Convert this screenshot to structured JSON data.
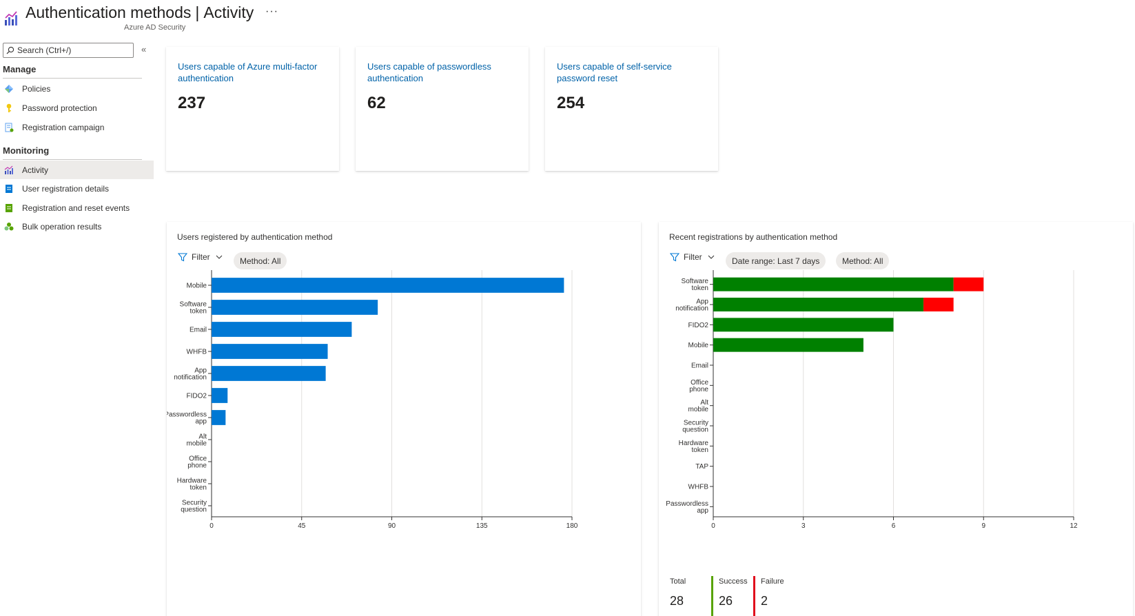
{
  "header": {
    "title": "Authentication methods",
    "separator": "|",
    "page": "Activity",
    "subtitle": "Azure AD Security",
    "more": "···"
  },
  "sidebar": {
    "search_placeholder": "Search (Ctrl+/)",
    "collapse": "«",
    "sections": [
      {
        "label": "Manage",
        "items": [
          {
            "label": "Policies",
            "icon": "policy-icon"
          },
          {
            "label": "Password protection",
            "icon": "key-icon"
          },
          {
            "label": "Registration campaign",
            "icon": "campaign-icon"
          }
        ]
      },
      {
        "label": "Monitoring",
        "items": [
          {
            "label": "Activity",
            "icon": "activity-chart-icon"
          },
          {
            "label": "User registration details",
            "icon": "details-icon"
          },
          {
            "label": "Registration and reset events",
            "icon": "events-icon"
          },
          {
            "label": "Bulk operation results",
            "icon": "bulk-icon"
          }
        ]
      }
    ]
  },
  "cards": [
    {
      "label": "Users capable of Azure multi-factor authentication",
      "value": "237"
    },
    {
      "label": "Users capable of passwordless authentication",
      "value": "62"
    },
    {
      "label": "Users capable of self-service password reset",
      "value": "254"
    }
  ],
  "panels": {
    "left": {
      "title": "Users registered by authentication method",
      "filter": "Filter",
      "pills": [
        "Method: All"
      ]
    },
    "right": {
      "title": "Recent registrations by authentication method",
      "filter": "Filter",
      "pills": [
        "Date range: Last 7 days",
        "Method: All"
      ],
      "stats": {
        "total_label": "Total",
        "total_value": "28",
        "success_label": "Success",
        "success_value": "26",
        "failure_label": "Failure",
        "failure_value": "2"
      }
    }
  },
  "colors": {
    "accent_blue": "#0078d4",
    "success_green": "#008000",
    "failure_red": "#ff0000",
    "success_bar": "#57a300",
    "failure_bar": "#e00b1c"
  },
  "chart_data": [
    {
      "type": "bar",
      "orientation": "horizontal",
      "title": "Users registered by authentication method",
      "categories": [
        [
          "Mobile"
        ],
        [
          "Software",
          "token"
        ],
        [
          "Email"
        ],
        [
          "WHFB"
        ],
        [
          "App",
          "notification"
        ],
        [
          "FIDO2"
        ],
        [
          "Passwordless",
          "app"
        ],
        [
          "Alt",
          "mobile"
        ],
        [
          "Office",
          "phone"
        ],
        [
          "Hardware",
          "token"
        ],
        [
          "Security",
          "question"
        ]
      ],
      "values": [
        176,
        83,
        70,
        58,
        57,
        8,
        7,
        0,
        0,
        0,
        0
      ],
      "xlim": [
        0,
        180
      ],
      "xticks": [
        "0",
        "45",
        "90",
        "135",
        "180"
      ],
      "xtick_values": [
        0,
        45,
        90,
        135,
        180
      ],
      "grid": true
    },
    {
      "type": "bar",
      "orientation": "horizontal",
      "stacked": true,
      "title": "Recent registrations by authentication method",
      "categories": [
        [
          "Software",
          "token"
        ],
        [
          "App",
          "notification"
        ],
        [
          "FIDO2"
        ],
        [
          "Mobile"
        ],
        [
          "Email"
        ],
        [
          "Office",
          "phone"
        ],
        [
          "Alt",
          "mobile"
        ],
        [
          "Security",
          "question"
        ],
        [
          "Hardware",
          "token"
        ],
        [
          "TAP"
        ],
        [
          "WHFB"
        ],
        [
          "Passwordless",
          "app"
        ]
      ],
      "series": [
        {
          "name": "Success",
          "values": [
            8,
            7,
            6,
            5,
            0,
            0,
            0,
            0,
            0,
            0,
            0,
            0
          ]
        },
        {
          "name": "Failure",
          "values": [
            1,
            1,
            0,
            0,
            0,
            0,
            0,
            0,
            0,
            0,
            0,
            0
          ]
        }
      ],
      "xlim": [
        0,
        12
      ],
      "xticks": [
        "0",
        "3",
        "6",
        "9",
        "12"
      ],
      "xtick_values": [
        0,
        3,
        6,
        9,
        12
      ],
      "grid": true
    }
  ]
}
